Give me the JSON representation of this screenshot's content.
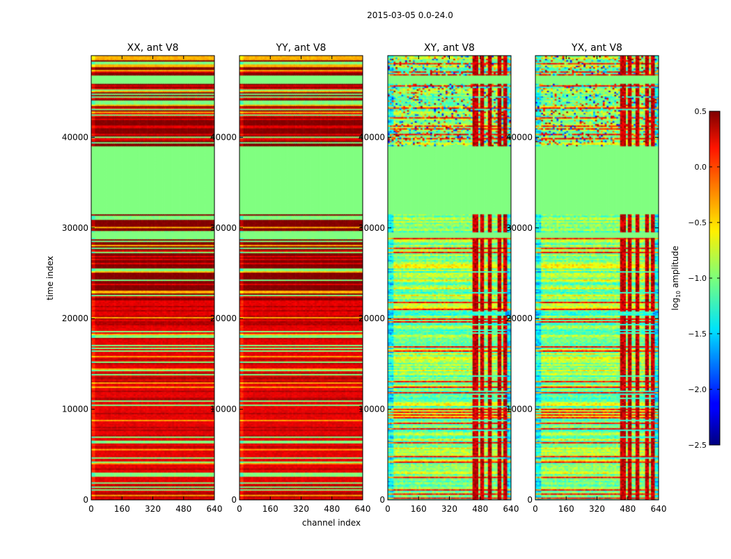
{
  "chart_data": {
    "type": "heatmap",
    "title": "2015-03-05 0.0-24.0",
    "xlabel": "channel index",
    "ylabel": "time index",
    "xlim": [
      0,
      640
    ],
    "ylim": [
      0,
      49000
    ],
    "xticks": [
      0,
      160,
      320,
      480,
      640
    ],
    "yticks": [
      0,
      10000,
      20000,
      30000,
      40000
    ],
    "panels": [
      {
        "title": "XX, ant V8",
        "kind": "parallel"
      },
      {
        "title": "YY, ant V8",
        "kind": "parallel"
      },
      {
        "title": "XY, ant V8",
        "kind": "cross"
      },
      {
        "title": "YX, ant V8",
        "kind": "cross"
      }
    ],
    "colorbar": {
      "label_prefix": "log",
      "label_sub": "10",
      "label_suffix": " amplitude",
      "range": [
        -2.5,
        0.5
      ],
      "ticks": [
        0.5,
        0.0,
        -0.5,
        -1.0,
        -1.5,
        -2.0,
        -2.5
      ],
      "tick_labels": [
        "0.5",
        "0.0",
        "−0.5",
        "−1.0",
        "−1.5",
        "−2.0",
        "−2.5"
      ],
      "colormap": "jet"
    },
    "flagged_value": -1.0,
    "flagged_time_ranges": [
      [
        31500,
        39000
      ],
      [
        46000,
        46800
      ],
      [
        29000,
        29500
      ]
    ],
    "strong_channel_ranges": [
      [
        440,
        470
      ],
      [
        480,
        500
      ],
      [
        520,
        540
      ],
      [
        570,
        590
      ],
      [
        600,
        620
      ]
    ]
  }
}
